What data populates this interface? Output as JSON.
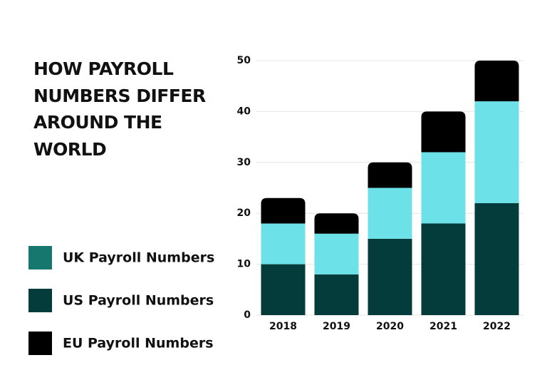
{
  "chart_data": {
    "type": "bar",
    "stacked": true,
    "title": "HOW PAYROLL NUMBERS DIFFER AROUND THE WORLD",
    "categories": [
      "2018",
      "2019",
      "2020",
      "2021",
      "2022"
    ],
    "series": [
      {
        "name": "UK Payroll Numbers",
        "color": "#6ce1e7",
        "legend_color": "#16776f",
        "values": [
          8,
          8,
          10,
          14,
          20
        ]
      },
      {
        "name": "US Payroll Numbers",
        "color": "#043b3b",
        "legend_color": "#043b3b",
        "values": [
          10,
          8,
          15,
          18,
          22
        ]
      },
      {
        "name": "EU Payroll Numbers",
        "color": "#000000",
        "legend_color": "#000000",
        "values": [
          5,
          4,
          5,
          8,
          8
        ]
      }
    ],
    "ylim": [
      0,
      50
    ],
    "yticks": [
      0,
      10,
      20,
      30,
      40,
      50
    ],
    "grid": true,
    "legend": "left"
  }
}
